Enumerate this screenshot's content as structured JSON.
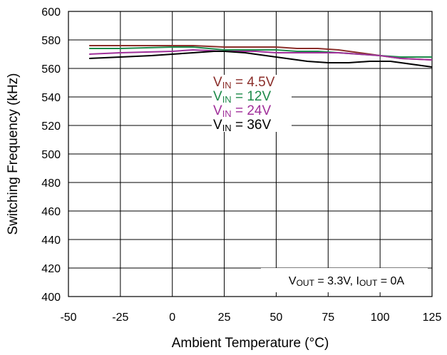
{
  "chart_data": {
    "type": "line",
    "title": "",
    "xlabel": "Ambient Temperature (°C)",
    "ylabel": "Switching Frequency (kHz)",
    "xlim": [
      -50,
      125
    ],
    "ylim": [
      400,
      600
    ],
    "xticks": [
      -50,
      -25,
      0,
      25,
      50,
      75,
      100,
      125
    ],
    "yticks": [
      400,
      420,
      440,
      460,
      480,
      500,
      520,
      540,
      560,
      580,
      600
    ],
    "grid": true,
    "legend_position": "center",
    "series": [
      {
        "name": "VIN = 4.5V",
        "label_main": "V",
        "label_sub": "IN",
        "label_rest": " = 4.5V",
        "color": "#8B2E2A",
        "x": [
          -40,
          -25,
          0,
          10,
          25,
          40,
          50,
          60,
          70,
          80,
          90,
          100,
          110,
          125
        ],
        "y": [
          576,
          576,
          576,
          576,
          575,
          575,
          575,
          574,
          574,
          573,
          571,
          569,
          567,
          566
        ]
      },
      {
        "name": "VIN = 12V",
        "label_main": "V",
        "label_sub": "IN",
        "label_rest": " = 12V",
        "color": "#1E8A4A",
        "x": [
          -40,
          -25,
          0,
          10,
          25,
          40,
          50,
          60,
          70,
          80,
          90,
          100,
          110,
          125
        ],
        "y": [
          574,
          574,
          575,
          575,
          573,
          573,
          573,
          572,
          572,
          571,
          570,
          569,
          568,
          568
        ]
      },
      {
        "name": "VIN = 24V",
        "label_main": "V",
        "label_sub": "IN",
        "label_rest": " = 24V",
        "color": "#A0309A",
        "x": [
          -40,
          -25,
          0,
          10,
          25,
          40,
          50,
          60,
          70,
          80,
          90,
          100,
          110,
          125
        ],
        "y": [
          570,
          571,
          572,
          573,
          572,
          572,
          571,
          571,
          571,
          571,
          570,
          569,
          567,
          566
        ]
      },
      {
        "name": "VIN = 36V",
        "label_main": "V",
        "label_sub": "IN",
        "label_rest": " = 36V",
        "color": "#000000",
        "x": [
          -40,
          -25,
          -10,
          0,
          10,
          20,
          25,
          35,
          45,
          55,
          65,
          75,
          85,
          95,
          105,
          115,
          125
        ],
        "y": [
          567,
          568,
          569,
          570,
          571,
          572,
          572,
          571,
          569,
          567,
          565,
          564,
          564,
          565,
          565,
          563,
          561
        ]
      }
    ],
    "annotation": {
      "parts": [
        {
          "text": "V",
          "sub": false
        },
        {
          "text": "OUT",
          "sub": true
        },
        {
          "text": " = 3.3V, I",
          "sub": false
        },
        {
          "text": "OUT",
          "sub": true
        },
        {
          "text": " = 0A",
          "sub": false
        }
      ]
    }
  }
}
